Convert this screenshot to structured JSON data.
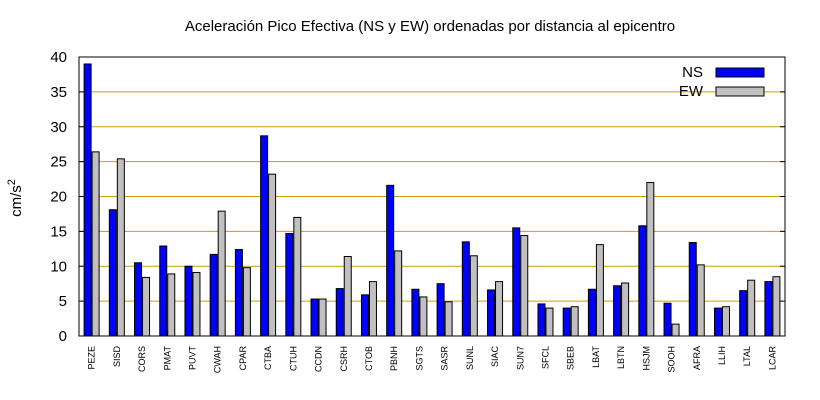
{
  "chart_data": {
    "type": "bar",
    "title": "Aceleración Pico Efectiva (NS y EW) ordenadas por distancia al epicentro",
    "ylabel": "cm/s",
    "ylabel_sup": "2",
    "xlabel": "",
    "ylim": [
      0,
      40
    ],
    "yticks": [
      0,
      5,
      10,
      15,
      20,
      25,
      30,
      35,
      40
    ],
    "grid": "horizontal",
    "legend_position": "top-right",
    "categories": [
      "PEZE",
      "SISD",
      "CORS",
      "PMAT",
      "PUVT",
      "CWAH",
      "CPAR",
      "CTBA",
      "CTUH",
      "CCDN",
      "CSRH",
      "CTOB",
      "PBNH",
      "SGTS",
      "SASR",
      "SUNL",
      "SIAC",
      "SUN7",
      "SFCL",
      "SBEB",
      "LBAT",
      "LBTN",
      "HSJM",
      "SOOH",
      "AFRA",
      "LLIH",
      "LTAL",
      "LCAR"
    ],
    "series": [
      {
        "name": "NS",
        "color": "#0000ff",
        "values": [
          39.0,
          18.1,
          10.5,
          12.9,
          10.0,
          11.7,
          12.4,
          28.7,
          14.7,
          5.3,
          6.8,
          5.9,
          21.6,
          6.7,
          7.5,
          13.5,
          6.6,
          15.5,
          4.6,
          4.0,
          6.7,
          7.2,
          15.8,
          4.7,
          13.4,
          4.0,
          6.5,
          7.8
        ]
      },
      {
        "name": "EW",
        "color": "#c0c0c0",
        "values": [
          26.4,
          25.4,
          8.4,
          8.9,
          9.1,
          17.9,
          9.8,
          23.2,
          17.0,
          5.3,
          11.4,
          7.8,
          12.2,
          5.6,
          4.9,
          11.5,
          7.8,
          14.4,
          4.0,
          4.2,
          13.1,
          7.6,
          22.0,
          1.7,
          10.2,
          4.2,
          8.0,
          8.5
        ]
      }
    ],
    "colors": {
      "grid": "#c8a000",
      "axis": "#000000"
    }
  }
}
